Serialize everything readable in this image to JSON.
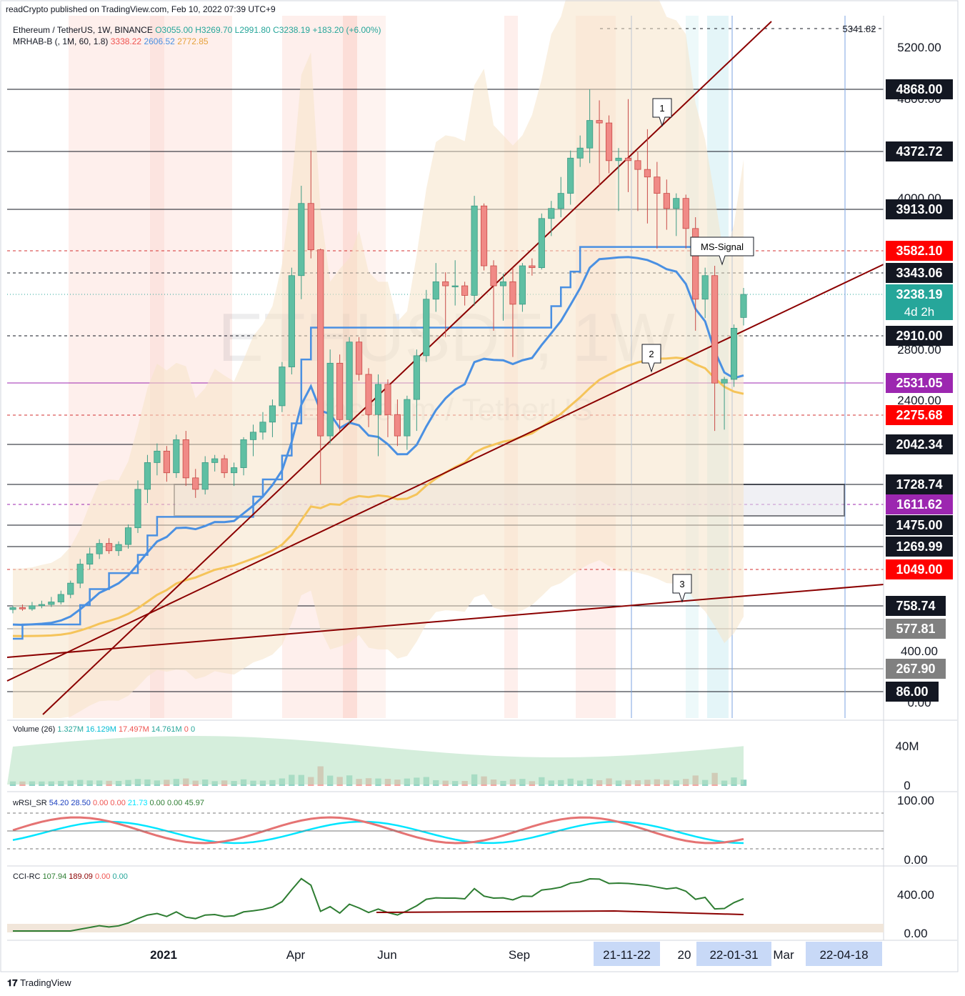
{
  "publisher_line": "readCrypto published on TradingView.com, Feb 10, 2022 07:39 UTC+9",
  "symbol_line": {
    "name": "Ethereum / TetherUS, 1W, BINANCE",
    "open": "O3055.00",
    "high": "H3269.70",
    "low": "L2991.80",
    "close": "C3238.19",
    "change": "+183.20 (+6.00%)"
  },
  "indicator_line": {
    "name": "MRHAB-B (, 1M, 60, 1.8)",
    "v1": "3338.22",
    "v2": "2606.52",
    "v3": "2772.85"
  },
  "watermark": {
    "symbol": "ETHUSDT, 1W",
    "name": "Ethereum / TetherUS"
  },
  "volume_pane": {
    "label": "Volume (26)",
    "v1": "1.327M",
    "v2": "16.129M",
    "v3": "17.497M",
    "v4": "14.761M",
    "v5": "0",
    "v6": "0",
    "axis": [
      "40M",
      "0"
    ]
  },
  "wrsi_pane": {
    "label": "wRSI_SR",
    "v1": "54.20",
    "v2": "28.50",
    "v3": "0.00",
    "v4": "0.00",
    "v5": "21.73",
    "v6": "0.00",
    "v7": "0.00",
    "v8": "45.97",
    "axis": [
      "100.00",
      "0.00"
    ]
  },
  "cci_pane": {
    "label": "CCI-RC",
    "v1": "107.94",
    "v2": "189.09",
    "v3": "0.00",
    "v4": "0.00",
    "axis": [
      "400.00",
      "0.00"
    ]
  },
  "footer_logo": "TradingView",
  "colors": {
    "up": "#26a69a",
    "up_fill": "#5fbfa3",
    "down": "#ef5350",
    "down_fill": "#f08a86",
    "blue_line": "#4a90e2",
    "orange_line": "#f5c45a",
    "trend": "#8b0000",
    "purple": "#9c27b0",
    "red_label": "#ff0000",
    "dark_label": "#131722",
    "grey_label": "#808080"
  },
  "chart_data": {
    "type": "candlestick",
    "title": "Ethereum / TetherUS, 1W, BINANCE",
    "x_labels": [
      "2021",
      "Apr",
      "Jun",
      "Sep",
      "Mar"
    ],
    "x_label_partial": "20",
    "x_highlight_labels": [
      "21-11-22",
      "22-01-31",
      "22-04-18"
    ],
    "y_tick_labels": [
      "5200.00",
      "4800.00",
      "4000.00",
      "2800.00",
      "2400.00",
      "400.00",
      "0.00"
    ],
    "top_level": "5341.82",
    "price_levels": [
      {
        "value": "4868.00",
        "style": "dark"
      },
      {
        "value": "4372.72",
        "style": "dark"
      },
      {
        "value": "3913.00",
        "style": "dark"
      },
      {
        "value": "3582.10",
        "style": "red"
      },
      {
        "value": "3343.06",
        "style": "dark"
      },
      {
        "value": "3238.19",
        "sub": "4d 2h",
        "style": "teal"
      },
      {
        "value": "2910.00",
        "style": "dark"
      },
      {
        "value": "2531.05",
        "style": "purple"
      },
      {
        "value": "2275.68",
        "style": "red"
      },
      {
        "value": "2042.34",
        "style": "dark"
      },
      {
        "value": "1728.74",
        "style": "dark"
      },
      {
        "value": "1611.62",
        "style": "purple"
      },
      {
        "value": "1475.00",
        "style": "dark"
      },
      {
        "value": "1269.99",
        "style": "dark"
      },
      {
        "value": "1049.00",
        "style": "red"
      },
      {
        "value": "758.74",
        "style": "dark"
      },
      {
        "value": "577.81",
        "style": "grey"
      },
      {
        "value": "267.90",
        "style": "grey"
      },
      {
        "value": "86.00",
        "style": "dark"
      }
    ],
    "annotations": [
      "1",
      "2",
      "3",
      "MS-Signal"
    ],
    "candles": [
      {
        "o": 730,
        "h": 760,
        "l": 700,
        "c": 745
      },
      {
        "o": 745,
        "h": 770,
        "l": 720,
        "c": 735
      },
      {
        "o": 735,
        "h": 790,
        "l": 720,
        "c": 760
      },
      {
        "o": 760,
        "h": 800,
        "l": 740,
        "c": 770
      },
      {
        "o": 770,
        "h": 830,
        "l": 750,
        "c": 790
      },
      {
        "o": 790,
        "h": 880,
        "l": 770,
        "c": 850
      },
      {
        "o": 850,
        "h": 960,
        "l": 820,
        "c": 940
      },
      {
        "o": 940,
        "h": 1150,
        "l": 900,
        "c": 1100
      },
      {
        "o": 1100,
        "h": 1260,
        "l": 1050,
        "c": 1200
      },
      {
        "o": 1200,
        "h": 1340,
        "l": 1150,
        "c": 1300
      },
      {
        "o": 1300,
        "h": 1350,
        "l": 1200,
        "c": 1230
      },
      {
        "o": 1230,
        "h": 1320,
        "l": 1180,
        "c": 1290
      },
      {
        "o": 1290,
        "h": 1480,
        "l": 1250,
        "c": 1450
      },
      {
        "o": 1450,
        "h": 1760,
        "l": 1400,
        "c": 1700
      },
      {
        "o": 1700,
        "h": 1960,
        "l": 1620,
        "c": 1900
      },
      {
        "o": 1900,
        "h": 2050,
        "l": 1800,
        "c": 1990
      },
      {
        "o": 1990,
        "h": 2030,
        "l": 1750,
        "c": 1820
      },
      {
        "o": 1820,
        "h": 2120,
        "l": 1780,
        "c": 2080
      },
      {
        "o": 2080,
        "h": 2150,
        "l": 1720,
        "c": 1780
      },
      {
        "o": 1780,
        "h": 1850,
        "l": 1650,
        "c": 1700
      },
      {
        "o": 1700,
        "h": 1950,
        "l": 1670,
        "c": 1900
      },
      {
        "o": 1900,
        "h": 1960,
        "l": 1830,
        "c": 1930
      },
      {
        "o": 1930,
        "h": 1960,
        "l": 1780,
        "c": 1820
      },
      {
        "o": 1820,
        "h": 1900,
        "l": 1720,
        "c": 1860
      },
      {
        "o": 1860,
        "h": 2100,
        "l": 1800,
        "c": 2080
      },
      {
        "o": 2080,
        "h": 2200,
        "l": 1950,
        "c": 2140
      },
      {
        "o": 2140,
        "h": 2300,
        "l": 2080,
        "c": 2220
      },
      {
        "o": 2220,
        "h": 2400,
        "l": 2100,
        "c": 2350
      },
      {
        "o": 2350,
        "h": 2700,
        "l": 2300,
        "c": 2660
      },
      {
        "o": 2660,
        "h": 3400,
        "l": 2600,
        "c": 3330
      },
      {
        "o": 3330,
        "h": 4100,
        "l": 3200,
        "c": 3960
      },
      {
        "o": 3960,
        "h": 4380,
        "l": 3500,
        "c": 3590
      },
      {
        "o": 3590,
        "h": 3600,
        "l": 1728,
        "c": 2110
      },
      {
        "o": 2110,
        "h": 2800,
        "l": 2050,
        "c": 2690
      },
      {
        "o": 2690,
        "h": 2760,
        "l": 2150,
        "c": 2240
      },
      {
        "o": 2240,
        "h": 2900,
        "l": 2200,
        "c": 2860
      },
      {
        "o": 2860,
        "h": 2900,
        "l": 2550,
        "c": 2600
      },
      {
        "o": 2600,
        "h": 2650,
        "l": 2180,
        "c": 2280
      },
      {
        "o": 2280,
        "h": 2600,
        "l": 1950,
        "c": 2520
      },
      {
        "o": 2520,
        "h": 2560,
        "l": 2100,
        "c": 2280
      },
      {
        "o": 2280,
        "h": 2400,
        "l": 2030,
        "c": 2110
      },
      {
        "o": 2110,
        "h": 2430,
        "l": 2000,
        "c": 2400
      },
      {
        "o": 2400,
        "h": 2800,
        "l": 2150,
        "c": 2750
      },
      {
        "o": 2750,
        "h": 3260,
        "l": 2700,
        "c": 3200
      },
      {
        "o": 3200,
        "h": 3450,
        "l": 3100,
        "c": 3300
      },
      {
        "o": 3300,
        "h": 3350,
        "l": 2900,
        "c": 3280
      },
      {
        "o": 3280,
        "h": 3480,
        "l": 3150,
        "c": 3280
      },
      {
        "o": 3280,
        "h": 3300,
        "l": 3150,
        "c": 3230
      },
      {
        "o": 3230,
        "h": 4020,
        "l": 3150,
        "c": 3940
      },
      {
        "o": 3940,
        "h": 3960,
        "l": 3370,
        "c": 3420
      },
      {
        "o": 3420,
        "h": 3480,
        "l": 2950,
        "c": 3280
      },
      {
        "o": 3280,
        "h": 3340,
        "l": 3030,
        "c": 3300
      },
      {
        "o": 3300,
        "h": 3400,
        "l": 2740,
        "c": 3160
      },
      {
        "o": 3160,
        "h": 3450,
        "l": 3100,
        "c": 3420
      },
      {
        "o": 3420,
        "h": 3500,
        "l": 3330,
        "c": 3400
      },
      {
        "o": 3400,
        "h": 3880,
        "l": 3380,
        "c": 3840
      },
      {
        "o": 3840,
        "h": 3980,
        "l": 3700,
        "c": 3920
      },
      {
        "o": 3920,
        "h": 4170,
        "l": 3850,
        "c": 4040
      },
      {
        "o": 4040,
        "h": 4380,
        "l": 3950,
        "c": 4320
      },
      {
        "o": 4320,
        "h": 4500,
        "l": 4250,
        "c": 4400
      },
      {
        "o": 4400,
        "h": 4868,
        "l": 4280,
        "c": 4620
      },
      {
        "o": 4620,
        "h": 4780,
        "l": 4100,
        "c": 4600
      },
      {
        "o": 4600,
        "h": 4660,
        "l": 4200,
        "c": 4300
      },
      {
        "o": 4300,
        "h": 4400,
        "l": 3900,
        "c": 4320
      },
      {
        "o": 4320,
        "h": 4790,
        "l": 4050,
        "c": 4300
      },
      {
        "o": 4300,
        "h": 4370,
        "l": 3900,
        "c": 4230
      },
      {
        "o": 4230,
        "h": 4550,
        "l": 3800,
        "c": 4170
      },
      {
        "o": 4170,
        "h": 4290,
        "l": 3600,
        "c": 4040
      },
      {
        "o": 4040,
        "h": 4150,
        "l": 3750,
        "c": 3920
      },
      {
        "o": 3920,
        "h": 4040,
        "l": 3700,
        "c": 4000
      },
      {
        "o": 4000,
        "h": 4030,
        "l": 3600,
        "c": 3760
      },
      {
        "o": 3760,
        "h": 3850,
        "l": 2950,
        "c": 3200
      },
      {
        "o": 3200,
        "h": 3400,
        "l": 3050,
        "c": 3330
      },
      {
        "o": 3330,
        "h": 3420,
        "l": 2150,
        "c": 2530
      },
      {
        "o": 2530,
        "h": 2580,
        "l": 2160,
        "c": 2560
      },
      {
        "o": 2560,
        "h": 3000,
        "l": 2500,
        "c": 2970
      },
      {
        "o": 3055,
        "h": 3269.7,
        "l": 2991.8,
        "c": 3238.19
      }
    ]
  }
}
